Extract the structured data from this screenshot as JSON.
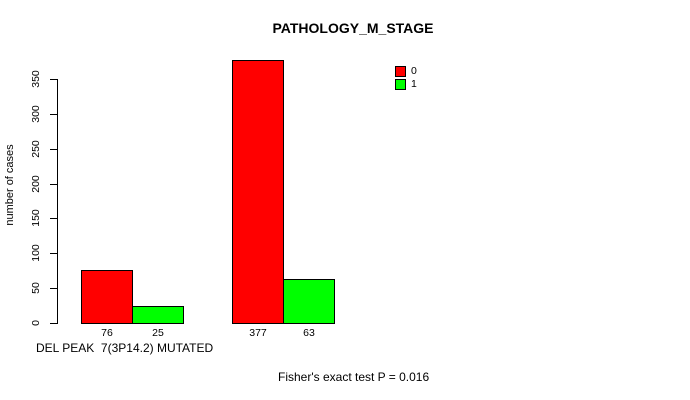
{
  "chart_data": {
    "type": "bar",
    "title": "PATHOLOGY_M_STAGE",
    "ylabel": "number of cases",
    "xlabel": "DEL PEAK  7(3P14.2) MUTATED",
    "annotation": "Fisher's exact test P = 0.016",
    "ylim": [
      0,
      380
    ],
    "yticks": [
      0,
      50,
      100,
      150,
      200,
      250,
      300,
      350
    ],
    "grid": false,
    "legend_position": "top-right",
    "legend": [
      {
        "label": "0",
        "color": "#ff0000"
      },
      {
        "label": "1",
        "color": "#00ff00"
      }
    ],
    "bar_border_color": "#000000",
    "groups": [
      {
        "bars": [
          {
            "series": "0",
            "value": 76,
            "label": "76",
            "color": "#ff0000"
          },
          {
            "series": "1",
            "value": 25,
            "label": "25",
            "color": "#00ff00"
          }
        ]
      },
      {
        "bars": [
          {
            "series": "0",
            "value": 377,
            "label": "377",
            "color": "#ff0000"
          },
          {
            "series": "1",
            "value": 63,
            "label": "63",
            "color": "#00ff00"
          }
        ]
      }
    ]
  }
}
